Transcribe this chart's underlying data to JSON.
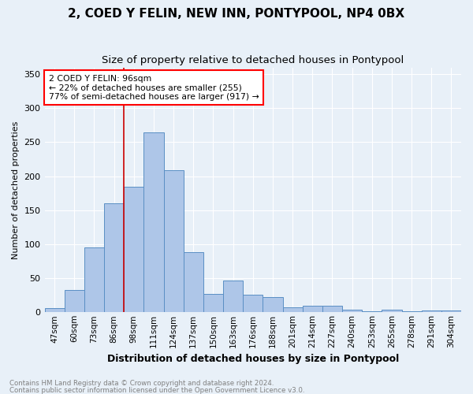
{
  "title": "2, COED Y FELIN, NEW INN, PONTYPOOL, NP4 0BX",
  "subtitle": "Size of property relative to detached houses in Pontypool",
  "xlabel": "Distribution of detached houses by size in Pontypool",
  "ylabel": "Number of detached properties",
  "footnote1": "Contains HM Land Registry data © Crown copyright and database right 2024.",
  "footnote2": "Contains public sector information licensed under the Open Government Licence v3.0.",
  "annotation_line1": "2 COED Y FELIN: 96sqm",
  "annotation_line2": "← 22% of detached houses are smaller (255)",
  "annotation_line3": "77% of semi-detached houses are larger (917) →",
  "bar_color": "#aec6e8",
  "bar_edge_color": "#5a8fc4",
  "vline_color": "#cc0000",
  "categories": [
    "47sqm",
    "60sqm",
    "73sqm",
    "86sqm",
    "98sqm",
    "111sqm",
    "124sqm",
    "137sqm",
    "150sqm",
    "163sqm",
    "176sqm",
    "188sqm",
    "201sqm",
    "214sqm",
    "227sqm",
    "240sqm",
    "253sqm",
    "265sqm",
    "278sqm",
    "291sqm",
    "304sqm"
  ],
  "values": [
    6,
    33,
    95,
    160,
    185,
    265,
    209,
    88,
    27,
    47,
    26,
    22,
    7,
    10,
    10,
    4,
    2,
    4,
    1,
    3,
    3
  ],
  "vline_pos": 3.5,
  "ylim": [
    0,
    360
  ],
  "yticks": [
    0,
    50,
    100,
    150,
    200,
    250,
    300,
    350
  ],
  "bg_color": "#e8f0f8",
  "grid_color": "#ffffff"
}
